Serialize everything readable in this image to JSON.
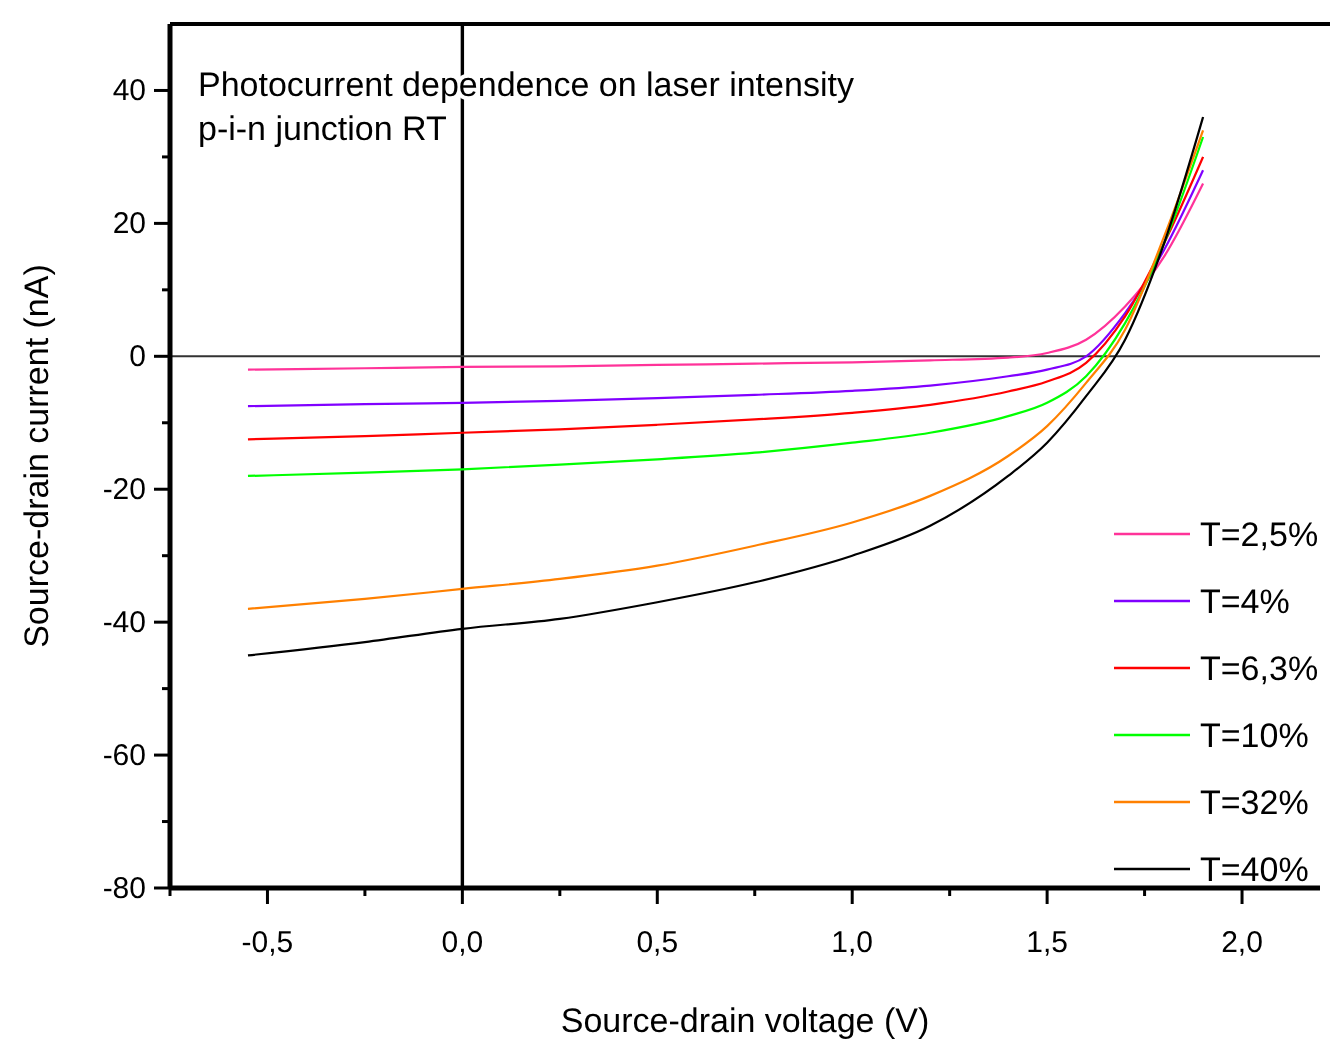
{
  "chart_data": {
    "type": "line",
    "xlabel": "Source-drain voltage (V)",
    "ylabel": "Source-drain current (nA)",
    "annotations": [
      "Photocurrent dependence on laser intensity",
      "p-i-n junction RT"
    ],
    "x": [
      -0.55,
      -0.25,
      0,
      0.25,
      0.5,
      0.75,
      1.0,
      1.2,
      1.4,
      1.5,
      1.6,
      1.7,
      1.8,
      1.9
    ],
    "series": [
      {
        "name": "T=2,5%",
        "color": "#ff3399",
        "values": [
          -2,
          -1.8,
          -1.6,
          -1.5,
          -1.3,
          -1.1,
          -0.9,
          -0.6,
          -0.2,
          0.5,
          2.5,
          7.5,
          15,
          26
        ]
      },
      {
        "name": "T=4%",
        "color": "#8000ff",
        "values": [
          -7.5,
          -7.2,
          -7,
          -6.7,
          -6.3,
          -5.8,
          -5.2,
          -4.4,
          -3,
          -2,
          0,
          6.5,
          16,
          28
        ]
      },
      {
        "name": "T=6,3%",
        "color": "#ff0000",
        "values": [
          -12.5,
          -12,
          -11.5,
          -11,
          -10.3,
          -9.5,
          -8.5,
          -7.3,
          -5.3,
          -3.8,
          -1,
          6,
          17,
          30
        ]
      },
      {
        "name": "T=10%",
        "color": "#00ff00",
        "values": [
          -18,
          -17.5,
          -17,
          -16.3,
          -15.5,
          -14.5,
          -13,
          -11.5,
          -9,
          -7,
          -3,
          5,
          17,
          33
        ]
      },
      {
        "name": "T=32%",
        "color": "#ff8000",
        "values": [
          -38,
          -36.5,
          -35,
          -33.5,
          -31.5,
          -28.5,
          -25,
          -21,
          -15,
          -10.5,
          -4,
          4,
          18,
          34
        ]
      },
      {
        "name": "T=40%",
        "color": "#000000",
        "values": [
          -45,
          -43,
          -41,
          -39.5,
          -37,
          -34,
          -30,
          -25.5,
          -18,
          -13,
          -6,
          2.5,
          17,
          36
        ]
      }
    ],
    "xlim": [
      -0.75,
      2.2
    ],
    "xticks": [
      {
        "value": -0.75,
        "label": null
      },
      {
        "value": -0.5,
        "label": "-0,5"
      },
      {
        "value": -0.25,
        "label": null
      },
      {
        "value": 0,
        "label": "0,0"
      },
      {
        "value": 0.25,
        "label": null
      },
      {
        "value": 0.5,
        "label": "0,5"
      },
      {
        "value": 0.75,
        "label": null
      },
      {
        "value": 1,
        "label": "1,0"
      },
      {
        "value": 1.25,
        "label": null
      },
      {
        "value": 1.5,
        "label": "1,5"
      },
      {
        "value": 1.75,
        "label": null
      },
      {
        "value": 2,
        "label": "2,0"
      }
    ],
    "ylim": [
      -80,
      50
    ],
    "yticks": [
      -80,
      {
        "value": -70,
        "label": null
      },
      -60,
      {
        "value": -50,
        "label": null
      },
      -40,
      {
        "value": -30,
        "label": null
      },
      -20,
      {
        "value": -10,
        "label": null
      },
      0,
      {
        "value": 10,
        "label": null
      },
      20,
      {
        "value": 30,
        "label": null
      },
      40
    ],
    "ref_lines": [
      {
        "axis": "x",
        "value": 0
      },
      {
        "axis": "y",
        "value": 0
      }
    ],
    "grid": false,
    "legend": "right",
    "line_style": "solid",
    "marker": "none"
  }
}
